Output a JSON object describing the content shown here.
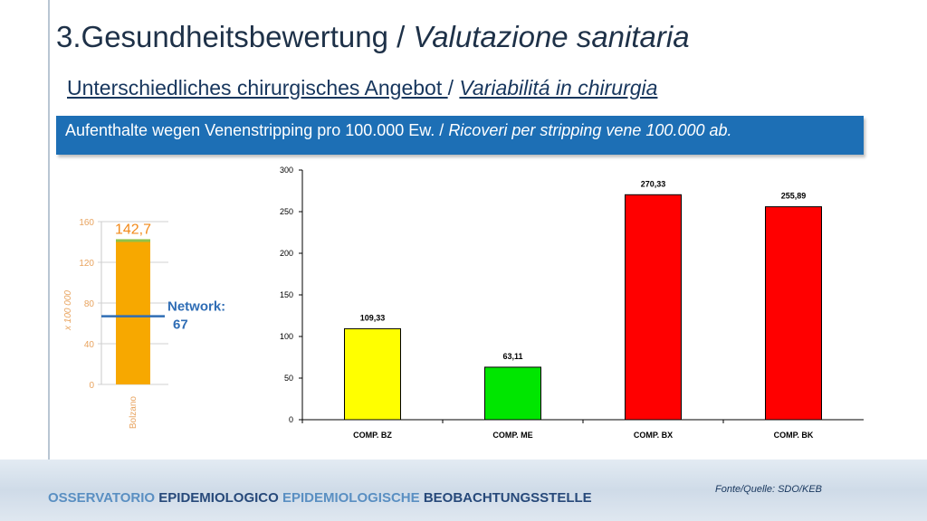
{
  "header": {
    "title_main": "3.Gesundheitsbewertung / ",
    "title_italic": "Valutazione sanitaria",
    "subtitle_main": "Unterschiedliches chirurgisches Angebot ",
    "subtitle_sep": " / ",
    "subtitle_italic": "Variabilitá in chirurgia"
  },
  "banner": {
    "text_main": "Aufenthalte wegen Venenstripping pro 100.000 Ew. / ",
    "text_italic": "Ricoveri per stripping vene 100.000 ab."
  },
  "chart_data": [
    {
      "type": "bar",
      "ylabel": "x 100 000",
      "categories": [
        "Bolzano"
      ],
      "values": [
        142.7
      ],
      "value_label": "142,7",
      "ylim": [
        0,
        160
      ],
      "yticks": [
        "0",
        "40",
        "80",
        "120",
        "160"
      ],
      "reference": {
        "label_line1": "Network:",
        "label_line2": "67",
        "value": 67,
        "color": "#2f6db5"
      },
      "colors": {
        "bar": "#f7a800",
        "bar_top": "#8fc24a",
        "value_label": "#f28a1a",
        "axis_text": "#e8a35e"
      }
    },
    {
      "type": "bar",
      "categories": [
        "COMP. BZ",
        "COMP. ME",
        "COMP. BX",
        "COMP. BK"
      ],
      "values": [
        109.33,
        63.11,
        270.33,
        255.89
      ],
      "value_labels": [
        "109,33",
        "63,11",
        "270,33",
        "255,89"
      ],
      "colors": [
        "#ffff00",
        "#00e600",
        "#ff0000",
        "#ff0000"
      ],
      "ylim": [
        0,
        300
      ],
      "yticks": [
        "0",
        "50",
        "100",
        "150",
        "200",
        "250",
        "300"
      ],
      "grid": false
    }
  ],
  "footer": {
    "org_words": [
      "OSSERVATORIO",
      "EPIDEMIOLOGICO",
      "EPIDEMIOLOGISCHE",
      "BEOBACHTUNGSSTELLE"
    ],
    "source": "Fonte/Quelle: SDO/KEB"
  }
}
